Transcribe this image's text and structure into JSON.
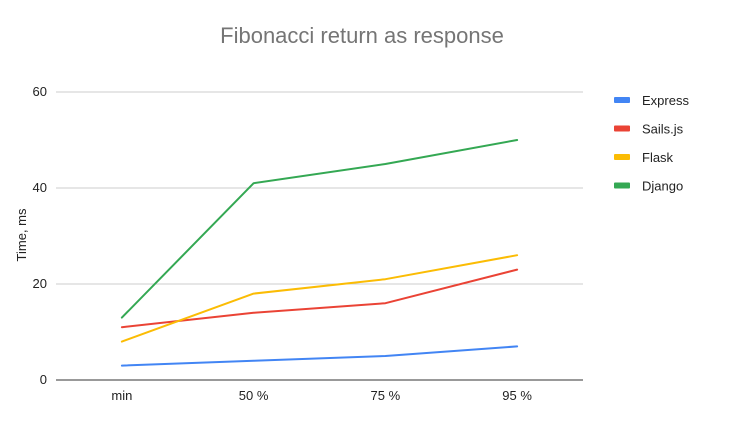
{
  "chart_data": {
    "type": "line",
    "title": "Fibonacci return as response",
    "xlabel": "",
    "ylabel": "Time, ms",
    "categories": [
      "min",
      "50 %",
      "75 %",
      "95 %"
    ],
    "ylim": [
      0,
      60
    ],
    "yticks": [
      "0",
      "20",
      "40",
      "60"
    ],
    "grid": true,
    "legend_position": "right",
    "series": [
      {
        "name": "Express",
        "color": "#4285f4",
        "values": [
          3,
          4,
          5,
          7
        ]
      },
      {
        "name": "Sails.js",
        "color": "#ea4335",
        "values": [
          11,
          14,
          16,
          23
        ]
      },
      {
        "name": "Flask",
        "color": "#fbbc04",
        "values": [
          8,
          18,
          21,
          26
        ]
      },
      {
        "name": "Django",
        "color": "#34a853",
        "values": [
          13,
          41,
          45,
          50
        ]
      }
    ]
  }
}
